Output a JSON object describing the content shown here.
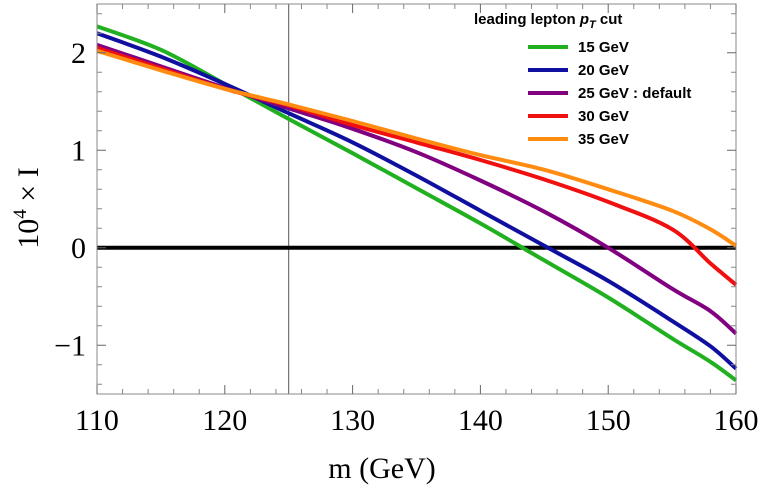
{
  "chart_data": {
    "type": "line",
    "xlabel": "m (GeV)",
    "ylabel_parts": {
      "base": "10",
      "exp": "4",
      "rest": " × I"
    },
    "xlim": [
      110,
      160
    ],
    "ylim": [
      -1.5,
      2.5
    ],
    "x_ticks": [
      110,
      120,
      130,
      140,
      150,
      160
    ],
    "y_ticks": [
      {
        "value": 2,
        "label": "2"
      },
      {
        "value": 1,
        "label": "1"
      },
      {
        "value": 0,
        "label": "0"
      },
      {
        "value": -1,
        "label": "−1"
      }
    ],
    "reference_vline": 125,
    "zero_line": 0,
    "legend": {
      "title_prefix": "leading lepton ",
      "title_var": "p",
      "title_sub": "T",
      "title_suffix": " cut",
      "placement": "top-right"
    },
    "x": [
      110,
      115,
      120,
      125,
      130,
      135,
      140,
      145,
      150,
      155,
      158,
      160
    ],
    "series": [
      {
        "name": "15 GeV",
        "color": "#20b020",
        "values": [
          2.27,
          2.03,
          1.68,
          1.32,
          0.97,
          0.61,
          0.25,
          -0.13,
          -0.51,
          -0.93,
          -1.17,
          -1.36
        ]
      },
      {
        "name": "20 GeV",
        "color": "#1010a0",
        "values": [
          2.2,
          1.96,
          1.68,
          1.38,
          1.08,
          0.74,
          0.38,
          0.02,
          -0.34,
          -0.75,
          -1.01,
          -1.24
        ]
      },
      {
        "name": "25 GeV : default",
        "color": "#800080",
        "values": [
          2.08,
          1.86,
          1.64,
          1.43,
          1.22,
          0.98,
          0.69,
          0.37,
          0.0,
          -0.42,
          -0.65,
          -0.88
        ]
      },
      {
        "name": "30 GeV",
        "color": "#f01010",
        "values": [
          2.05,
          1.84,
          1.63,
          1.46,
          1.26,
          1.08,
          0.9,
          0.7,
          0.47,
          0.19,
          -0.16,
          -0.38
        ]
      },
      {
        "name": "35 GeV",
        "color": "#ff8c10",
        "values": [
          2.02,
          1.82,
          1.63,
          1.47,
          1.3,
          1.12,
          0.95,
          0.8,
          0.6,
          0.38,
          0.19,
          0.02
        ]
      }
    ]
  }
}
